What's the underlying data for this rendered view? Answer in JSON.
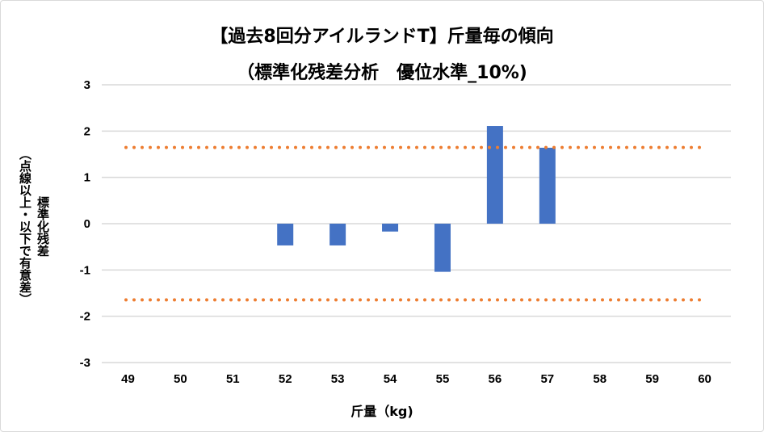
{
  "chart_data": {
    "type": "bar",
    "title": "【過去8回分アイルランドT】斤量毎の傾向",
    "subtitle": "（標準化残差分析　優位水準_10%)",
    "xlabel": "斤量（kg)",
    "ylabel_lines": [
      "標準化残差",
      "（点線以上・以下で有意差）"
    ],
    "categories": [
      "49",
      "50",
      "51",
      "52",
      "53",
      "54",
      "55",
      "56",
      "57",
      "58",
      "59",
      "60"
    ],
    "values": [
      0,
      0,
      0,
      -0.47,
      -0.47,
      -0.17,
      -1.04,
      2.11,
      1.64,
      0,
      0,
      0
    ],
    "ylim": [
      -3,
      3
    ],
    "yticks": [
      3,
      2,
      1,
      0,
      -1,
      -2,
      -3
    ],
    "reference_lines": [
      1.645,
      -1.645
    ],
    "grid": true,
    "legend": "none",
    "colors": {
      "bar": "#4472c4",
      "reference": "#ed7d31",
      "grid": "#d9d9d9"
    }
  }
}
